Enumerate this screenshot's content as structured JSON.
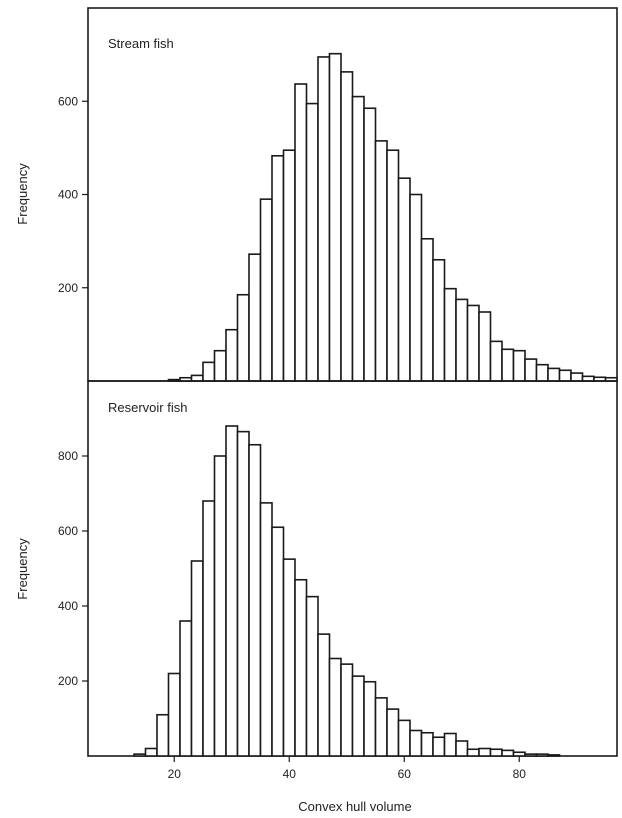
{
  "chart_data": [
    {
      "type": "bar",
      "panel_label": "Stream fish",
      "ylabel": "Frequency",
      "xlabel": "",
      "xlim": [
        5,
        97
      ],
      "ylim": [
        0,
        800
      ],
      "y_ticks": [
        200,
        400,
        600
      ],
      "x_ticks": [],
      "bin_width": 2,
      "bin_starts": [
        11,
        13,
        15,
        17,
        19,
        21,
        23,
        25,
        27,
        29,
        31,
        33,
        35,
        37,
        39,
        41,
        43,
        45,
        47,
        49,
        51,
        53,
        55,
        57,
        59,
        61,
        63,
        65,
        67,
        69,
        71,
        73,
        75,
        77,
        79,
        81,
        83,
        85,
        87,
        89,
        91,
        93,
        95
      ],
      "values": [
        0,
        0,
        0,
        0,
        3,
        7,
        12,
        40,
        65,
        110,
        185,
        272,
        390,
        483,
        495,
        637,
        595,
        695,
        702,
        663,
        610,
        585,
        515,
        495,
        435,
        400,
        305,
        260,
        198,
        175,
        162,
        148,
        85,
        68,
        65,
        47,
        35,
        27,
        23,
        17,
        10,
        8,
        7
      ]
    },
    {
      "type": "bar",
      "panel_label": "Reservoir fish",
      "ylabel": "Frequency",
      "xlabel": "Convex hull volume",
      "xlim": [
        5,
        97
      ],
      "ylim": [
        0,
        1000
      ],
      "y_ticks": [
        200,
        400,
        600,
        800
      ],
      "x_ticks": [
        20,
        40,
        60,
        80
      ],
      "bin_width": 2,
      "bin_starts": [
        11,
        13,
        15,
        17,
        19,
        21,
        23,
        25,
        27,
        29,
        31,
        33,
        35,
        37,
        39,
        41,
        43,
        45,
        47,
        49,
        51,
        53,
        55,
        57,
        59,
        61,
        63,
        65,
        67,
        69,
        71,
        73,
        75,
        77,
        79,
        81,
        83,
        85,
        87,
        89,
        91,
        93,
        95
      ],
      "values": [
        0,
        5,
        20,
        110,
        220,
        360,
        520,
        680,
        800,
        880,
        865,
        830,
        675,
        610,
        525,
        470,
        425,
        325,
        260,
        245,
        213,
        198,
        155,
        125,
        95,
        68,
        62,
        50,
        60,
        40,
        18,
        20,
        18,
        15,
        10,
        5,
        5,
        3,
        0,
        0,
        0,
        0,
        0
      ]
    }
  ]
}
